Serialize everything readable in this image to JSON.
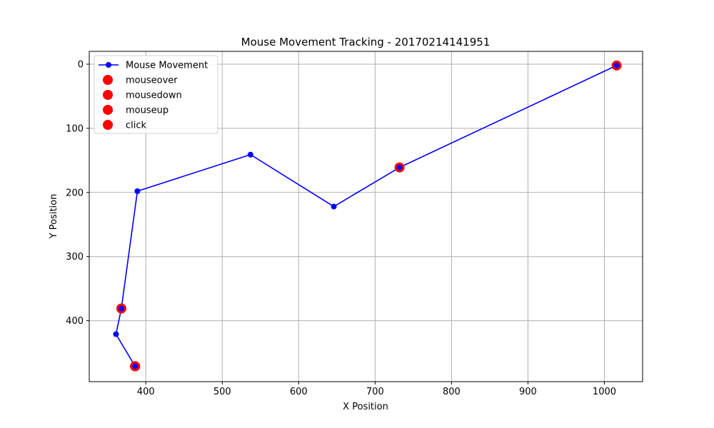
{
  "chart_data": {
    "type": "line",
    "title": "Mouse Movement Tracking - 20170214141951",
    "xlabel": "X Position",
    "ylabel": "Y Position",
    "xlim": [
      326,
      1050
    ],
    "ylim": [
      495,
      -20
    ],
    "y_inverted": true,
    "grid": true,
    "legend_position": "top-left",
    "xticks": [
      400,
      500,
      600,
      700,
      800,
      900,
      1000
    ],
    "yticks": [
      0,
      100,
      200,
      300,
      400
    ],
    "series": [
      {
        "name": "Mouse Movement",
        "color": "#0000ff",
        "marker": "circle",
        "x": [
          386,
          361,
          368,
          389,
          537,
          646,
          732,
          1016
        ],
        "y": [
          471,
          421,
          381,
          198,
          141,
          222,
          161,
          2
        ]
      }
    ],
    "events": [
      {
        "name": "mouseover",
        "color": "#ff0000",
        "points": [
          {
            "x": 368,
            "y": 381
          },
          {
            "x": 732,
            "y": 161
          },
          {
            "x": 1016,
            "y": 2
          },
          {
            "x": 386,
            "y": 471
          }
        ]
      },
      {
        "name": "mousedown",
        "color": "#ff0000",
        "points": [
          {
            "x": 386,
            "y": 471
          }
        ]
      },
      {
        "name": "mouseup",
        "color": "#ff0000",
        "points": [
          {
            "x": 386,
            "y": 471
          }
        ]
      },
      {
        "name": "click",
        "color": "#ff0000",
        "points": [
          {
            "x": 386,
            "y": 471
          }
        ]
      }
    ]
  }
}
